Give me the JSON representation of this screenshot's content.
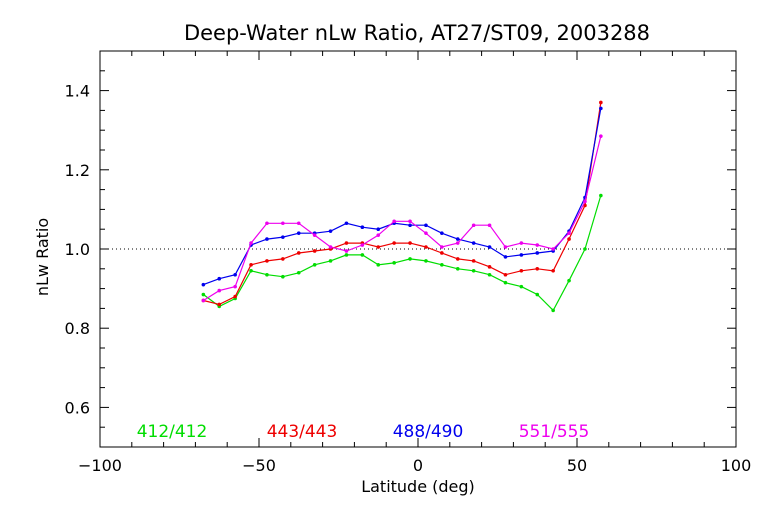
{
  "chart_data": {
    "type": "line",
    "title": "Deep-Water nLw Ratio, AT27/ST09, 2003288",
    "xlabel": "Latitude (deg)",
    "ylabel": "nLw Ratio",
    "xlim": [
      -100,
      100
    ],
    "ylim": [
      0.5,
      1.5
    ],
    "x_ticks": [
      -100,
      -50,
      0,
      50,
      100
    ],
    "x_tick_labels": [
      "−100",
      "−50",
      "0",
      "50",
      "100"
    ],
    "y_ticks": [
      0.6,
      0.8,
      1.0,
      1.2,
      1.4
    ],
    "y_tick_labels": [
      "0.6",
      "0.8",
      "1.0",
      "1.2",
      "1.4"
    ],
    "reference_line": 1.0,
    "grid": false,
    "legend_placement": "bottom",
    "x": [
      -67.5,
      -62.5,
      -57.5,
      -52.5,
      -47.5,
      -42.5,
      -37.5,
      -32.5,
      -27.5,
      -22.5,
      -17.5,
      -12.5,
      -7.5,
      -2.5,
      2.5,
      7.5,
      12.5,
      17.5,
      22.5,
      27.5,
      32.5,
      37.5,
      42.5,
      47.5,
      52.5,
      57.5
    ],
    "series": [
      {
        "name": "412/412",
        "color": "#00dd00",
        "values": [
          0.885,
          0.855,
          0.875,
          0.945,
          0.935,
          0.93,
          0.94,
          0.96,
          0.97,
          0.985,
          0.985,
          0.96,
          0.965,
          0.975,
          0.97,
          0.96,
          0.95,
          0.945,
          0.935,
          0.915,
          0.905,
          0.885,
          0.845,
          0.92,
          1.0,
          1.135
        ]
      },
      {
        "name": "443/443",
        "color": "#ee0000",
        "values": [
          0.87,
          0.86,
          0.88,
          0.96,
          0.97,
          0.975,
          0.99,
          0.995,
          1.0,
          1.015,
          1.015,
          1.005,
          1.015,
          1.015,
          1.005,
          0.99,
          0.975,
          0.97,
          0.955,
          0.935,
          0.945,
          0.95,
          0.945,
          1.025,
          1.11,
          1.37
        ]
      },
      {
        "name": "488/490",
        "color": "#0000ee",
        "values": [
          0.91,
          0.925,
          0.935,
          1.01,
          1.025,
          1.03,
          1.04,
          1.04,
          1.045,
          1.065,
          1.055,
          1.05,
          1.065,
          1.06,
          1.06,
          1.04,
          1.025,
          1.015,
          1.005,
          0.98,
          0.985,
          0.99,
          0.995,
          1.045,
          1.13,
          1.355
        ]
      },
      {
        "name": "551/555",
        "color": "#ee00ee",
        "values": [
          0.87,
          0.895,
          0.905,
          1.015,
          1.065,
          1.065,
          1.065,
          1.035,
          1.005,
          0.995,
          1.01,
          1.035,
          1.07,
          1.07,
          1.04,
          1.005,
          1.015,
          1.06,
          1.06,
          1.005,
          1.015,
          1.01,
          1.0,
          1.04,
          1.12,
          1.285
        ]
      }
    ]
  }
}
